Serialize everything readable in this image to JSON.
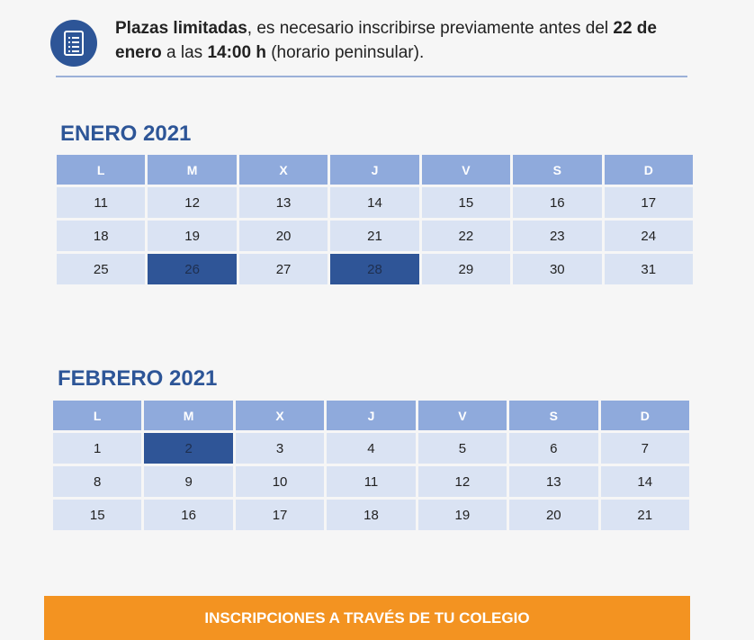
{
  "notice": {
    "icon": "list-document-icon",
    "bold_start": "Plazas limitadas",
    "text1": ", es necesario inscribirse previamente antes del ",
    "bold_date": "22 de enero",
    "text2": " a las ",
    "bold_time": "14:00 h",
    "text3": " (horario peninsular)."
  },
  "colors": {
    "title": "#2d5597",
    "header_cell": "#8faadc",
    "day_cell": "#dae3f3",
    "highlight_cell": "#2f5597",
    "footer": "#f39321"
  },
  "weekday_labels": [
    "L",
    "M",
    "X",
    "J",
    "V",
    "S",
    "D"
  ],
  "calendars": [
    {
      "title": "ENERO 2021",
      "weeks": [
        [
          "11",
          "12",
          "13",
          "14",
          "15",
          "16",
          "17"
        ],
        [
          "18",
          "19",
          "20",
          "21",
          "22",
          "23",
          "24"
        ],
        [
          "25",
          "26",
          "27",
          "28",
          "29",
          "30",
          "31"
        ]
      ],
      "highlighted": [
        "26",
        "28"
      ]
    },
    {
      "title": "FEBRERO 2021",
      "weeks": [
        [
          "1",
          "2",
          "3",
          "4",
          "5",
          "6",
          "7"
        ],
        [
          "8",
          "9",
          "10",
          "11",
          "12",
          "13",
          "14"
        ],
        [
          "15",
          "16",
          "17",
          "18",
          "19",
          "20",
          "21"
        ]
      ],
      "highlighted": [
        "2"
      ]
    }
  ],
  "footer": {
    "label": "INSCRIPCIONES A TRAVÉS DE TU COLEGIO"
  }
}
